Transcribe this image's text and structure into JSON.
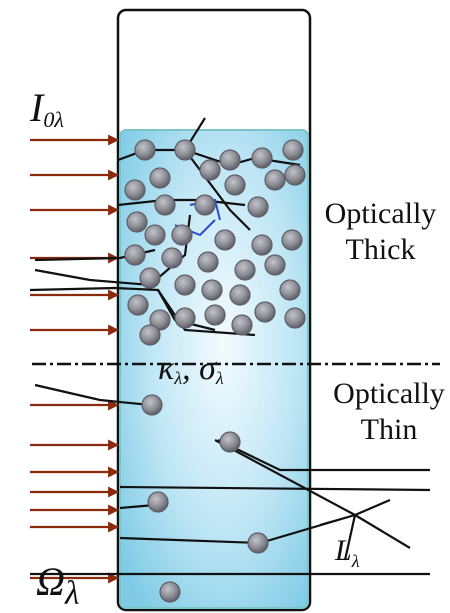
{
  "labels": {
    "intensity_symbol": "I",
    "intensity_subscript": "0λ",
    "absorption_symbol": "κ",
    "absorption_subscript": "λ",
    "scattering_symbol": "σ",
    "scattering_subscript": "λ",
    "path_symbol": "L",
    "path_subscript": "λ",
    "bottom_symbol": "Ω",
    "bottom_subscript": "λ"
  },
  "regions": {
    "thick_line1": "Optically",
    "thick_line2": "Thick",
    "thin_line1": "Optically",
    "thin_line2": "Thin"
  },
  "colors": {
    "arrow": "#8b2a0e",
    "ray": "#111111",
    "blue_ray": "#2a4bd1",
    "liquid_light": "#e6f5fc",
    "liquid_dark": "#8fd0ea",
    "liquid_edge": "#7cc4c6",
    "particle": "#8d8d96",
    "particle_edge": "#5f5f68"
  }
}
